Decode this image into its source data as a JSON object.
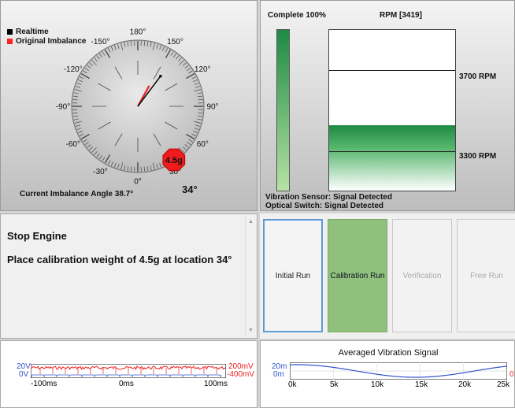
{
  "gauge": {
    "legend": [
      {
        "label": "Realtime",
        "color": "#000000"
      },
      {
        "label": "Original Imbalance",
        "color": "#ff2020"
      }
    ],
    "degree_labels": [
      "180°",
      "150°",
      "120°",
      "90°",
      "60°",
      "30°",
      "0°",
      "-30°",
      "-60°",
      "-90°",
      "-120°",
      "-150°"
    ],
    "weight_badge": "4.5g",
    "current_angle_text": "Current Imbalance Angle 38.7°",
    "angle_value": "34°",
    "realtime_angle_deg": 143,
    "original_angle_deg": 151,
    "badge_angle_deg": 34
  },
  "rpm": {
    "complete_label": "Complete 100%",
    "rpm_title": "RPM [3419]",
    "progress_fraction": 1.0,
    "upper_line_label": "3700 RPM",
    "lower_line_label": "3300 RPM",
    "current_rpm": 3419,
    "sensor_status": "Vibration Sensor: Signal Detected",
    "switch_status": "Optical Switch: Signal Detected"
  },
  "instructions": {
    "line1": "Stop Engine",
    "line2": "Place calibration weight of 4.5g at location 34°"
  },
  "buttons": [
    {
      "label": "Initial Run",
      "state": "active"
    },
    {
      "label": "Calibration Run",
      "state": "selected"
    },
    {
      "label": "Verification",
      "state": "disabled"
    },
    {
      "label": "Free Run",
      "state": "disabled"
    }
  ],
  "signal1": {
    "left_top": "20V",
    "left_bottom": "0V",
    "right_top": "200mV",
    "right_bottom": "-400mV",
    "x_ticks": [
      "-100ms",
      "0ms",
      "100ms"
    ],
    "colors": {
      "left": "#3355cc",
      "right": "#ee2222"
    }
  },
  "signal2": {
    "title": "Averaged Vibration Signal",
    "y_top": "20m",
    "y_bottom": "0m",
    "right_edge": "0",
    "x_ticks": [
      "0k",
      "5k",
      "10k",
      "15k",
      "20k",
      "25k"
    ]
  }
}
